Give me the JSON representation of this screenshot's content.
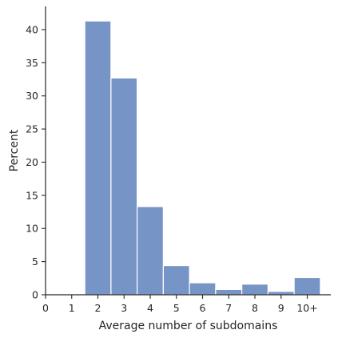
{
  "chart_data": {
    "type": "bar",
    "subtype": "histogram",
    "title": "",
    "xlabel": "Average number of subdomains",
    "ylabel": "Percent",
    "categories": [
      "2",
      "3",
      "4",
      "5",
      "6",
      "7",
      "8",
      "9",
      "10+"
    ],
    "bins": [
      {
        "x0": 1.5,
        "x1": 2.5,
        "value": 41.3
      },
      {
        "x0": 2.5,
        "x1": 3.5,
        "value": 32.7
      },
      {
        "x0": 3.5,
        "x1": 4.5,
        "value": 13.3
      },
      {
        "x0": 4.5,
        "x1": 5.5,
        "value": 4.4
      },
      {
        "x0": 5.5,
        "x1": 6.5,
        "value": 1.8
      },
      {
        "x0": 6.5,
        "x1": 7.5,
        "value": 0.8
      },
      {
        "x0": 7.5,
        "x1": 8.5,
        "value": 1.6
      },
      {
        "x0": 8.5,
        "x1": 9.5,
        "value": 0.5
      },
      {
        "x0": 9.5,
        "x1": 10.5,
        "value": 2.6
      }
    ],
    "xlim": [
      0,
      10.9
    ],
    "ylim": [
      0,
      43.5
    ],
    "xticks": [
      {
        "value": 0,
        "label": "0"
      },
      {
        "value": 1,
        "label": "1"
      },
      {
        "value": 2,
        "label": "2"
      },
      {
        "value": 3,
        "label": "3"
      },
      {
        "value": 4,
        "label": "4"
      },
      {
        "value": 5,
        "label": "5"
      },
      {
        "value": 6,
        "label": "6"
      },
      {
        "value": 7,
        "label": "7"
      },
      {
        "value": 8,
        "label": "8"
      },
      {
        "value": 9,
        "label": "9"
      },
      {
        "value": 10,
        "label": "10+"
      }
    ],
    "yticks": [
      {
        "value": 0,
        "label": "0"
      },
      {
        "value": 5,
        "label": "5"
      },
      {
        "value": 10,
        "label": "10"
      },
      {
        "value": 15,
        "label": "15"
      },
      {
        "value": 20,
        "label": "20"
      },
      {
        "value": 25,
        "label": "25"
      },
      {
        "value": 30,
        "label": "30"
      },
      {
        "value": 35,
        "label": "35"
      },
      {
        "value": 40,
        "label": "40"
      }
    ],
    "grid": false,
    "legend": "none",
    "colors": {
      "bar_fill": "#7694c6",
      "bar_edge": "#ffffff",
      "axis": "#262626"
    }
  }
}
